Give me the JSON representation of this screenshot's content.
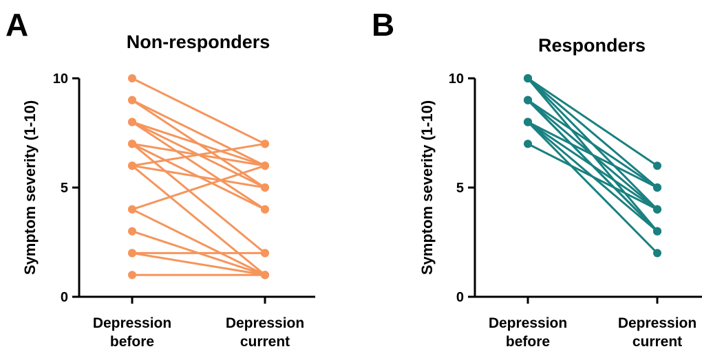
{
  "chart_data": [
    {
      "type": "line",
      "panel": "A",
      "title": "Non-responders",
      "ylabel": "Symptom severity (1-10)",
      "categories": [
        [
          "Depression",
          "before"
        ],
        [
          "Depression",
          "current"
        ]
      ],
      "ylim": [
        0,
        10
      ],
      "yticks": [
        "0",
        "5",
        "10"
      ],
      "color": "#F5955C",
      "pairs": [
        [
          10,
          7
        ],
        [
          9,
          6
        ],
        [
          9,
          5
        ],
        [
          8,
          6
        ],
        [
          8,
          5
        ],
        [
          8,
          4
        ],
        [
          7,
          6
        ],
        [
          7,
          4
        ],
        [
          7,
          2
        ],
        [
          6,
          7
        ],
        [
          6,
          5
        ],
        [
          6,
          1
        ],
        [
          4,
          6
        ],
        [
          4,
          1
        ],
        [
          3,
          1
        ],
        [
          2,
          2
        ],
        [
          2,
          1
        ],
        [
          1,
          1
        ]
      ]
    },
    {
      "type": "line",
      "panel": "B",
      "title": "Responders",
      "ylabel": "Symptom severity (1-10)",
      "categories": [
        [
          "Depression",
          "before"
        ],
        [
          "Depression",
          "current"
        ]
      ],
      "ylim": [
        0,
        10
      ],
      "yticks": [
        "0",
        "5",
        "10"
      ],
      "color": "#1A8080",
      "pairs": [
        [
          10,
          6
        ],
        [
          10,
          5
        ],
        [
          10,
          4
        ],
        [
          10,
          3
        ],
        [
          9,
          5
        ],
        [
          9,
          4
        ],
        [
          9,
          3
        ],
        [
          9,
          3
        ],
        [
          8,
          5
        ],
        [
          8,
          4
        ],
        [
          8,
          3
        ],
        [
          8,
          2
        ],
        [
          7,
          4
        ]
      ]
    }
  ]
}
